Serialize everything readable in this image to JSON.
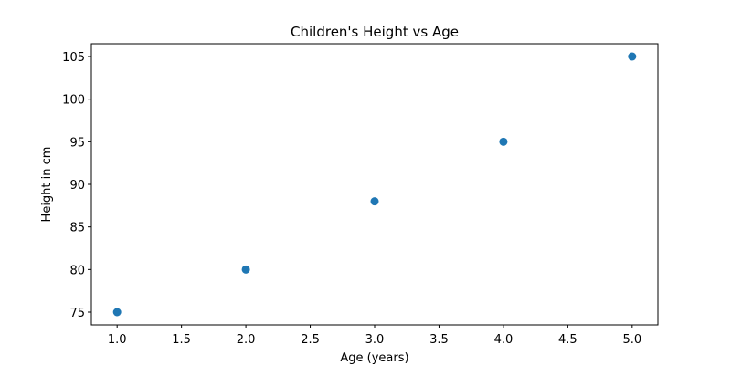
{
  "chart_data": {
    "type": "scatter",
    "title": "Children's Height vs Age",
    "xlabel": "Age (years)",
    "ylabel": "Height in cm",
    "x": [
      1.0,
      2.0,
      3.0,
      4.0,
      5.0
    ],
    "y": [
      75,
      80,
      88,
      95,
      105
    ],
    "xlim": [
      0.8,
      5.2
    ],
    "ylim": [
      73.5,
      106.5
    ],
    "xticks": [
      1.0,
      1.5,
      2.0,
      2.5,
      3.0,
      3.5,
      4.0,
      4.5,
      5.0
    ],
    "xtick_labels": [
      "1.0",
      "1.5",
      "2.0",
      "2.5",
      "3.0",
      "3.5",
      "4.0",
      "4.5",
      "5.0"
    ],
    "yticks": [
      75,
      80,
      85,
      90,
      95,
      100,
      105
    ],
    "ytick_labels": [
      "75",
      "80",
      "85",
      "90",
      "95",
      "100",
      "105"
    ],
    "marker_color": "#1f77b4",
    "grid": false,
    "legend": "none"
  }
}
